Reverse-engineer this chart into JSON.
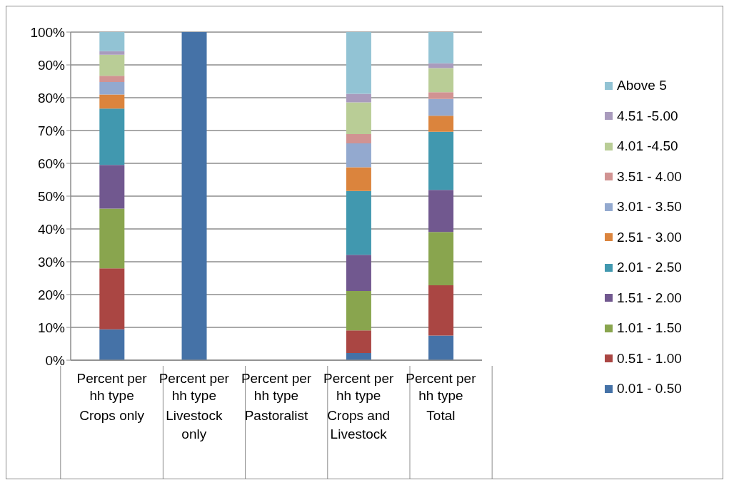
{
  "chart_data": {
    "type": "bar",
    "stacked": true,
    "categories": [
      "Percent per hh type\nCrops only",
      "Percent per hh type\nLivestock only",
      "Percent per hh type\nPastoralist",
      "Percent per hh type\nCrops and Livestock",
      "Percent per hh type\nTotal"
    ],
    "ylim": [
      0,
      100
    ],
    "yticks": [
      {
        "value": 0,
        "label": "0%"
      },
      {
        "value": 10,
        "label": "10%"
      },
      {
        "value": 20,
        "label": "20%"
      },
      {
        "value": 30,
        "label": "30%"
      },
      {
        "value": 40,
        "label": "40%"
      },
      {
        "value": 50,
        "label": "50%"
      },
      {
        "value": 60,
        "label": "60%"
      },
      {
        "value": 70,
        "label": "70%"
      },
      {
        "value": 80,
        "label": "80%"
      },
      {
        "value": 90,
        "label": "90%"
      },
      {
        "value": 100,
        "label": "100%"
      }
    ],
    "grid": "y",
    "legend": "right",
    "series": [
      {
        "name": "0.01 - 0.50",
        "color": "#4572a7",
        "values": [
          9.4,
          100,
          0,
          2.2,
          7.5
        ]
      },
      {
        "name": "0.51 - 1.00",
        "color": "#aa4643",
        "values": [
          18.6,
          0,
          0,
          6.9,
          15.3
        ]
      },
      {
        "name": "1.01 - 1.50",
        "color": "#89a54e",
        "values": [
          18.2,
          0,
          0,
          12.0,
          16.3
        ]
      },
      {
        "name": "1.51 - 2.00",
        "color": "#71588f",
        "values": [
          13.3,
          0,
          0,
          11.0,
          12.8
        ]
      },
      {
        "name": "2.01 - 2.50",
        "color": "#4198af",
        "values": [
          17.2,
          0,
          0,
          19.5,
          17.7
        ]
      },
      {
        "name": "2.51 - 3.00",
        "color": "#db843d",
        "values": [
          4.3,
          0,
          0,
          7.2,
          4.9
        ]
      },
      {
        "name": "3.01 - 3.50",
        "color": "#93a9cf",
        "values": [
          3.8,
          0,
          0,
          7.3,
          5.1
        ]
      },
      {
        "name": "3.51 - 4.00",
        "color": "#d19392",
        "values": [
          1.9,
          0,
          0,
          2.8,
          2.1
        ]
      },
      {
        "name": "4.01 -4.50",
        "color": "#b9cd96",
        "values": [
          6.4,
          0,
          0,
          9.7,
          7.3
        ]
      },
      {
        "name": "4.51 -5.00",
        "color": "#a99bbd",
        "values": [
          1.1,
          0,
          0,
          2.6,
          1.5
        ]
      },
      {
        "name": "Above 5",
        "color": "#92c3d4",
        "values": [
          5.8,
          0,
          0,
          18.8,
          9.5
        ]
      }
    ]
  }
}
